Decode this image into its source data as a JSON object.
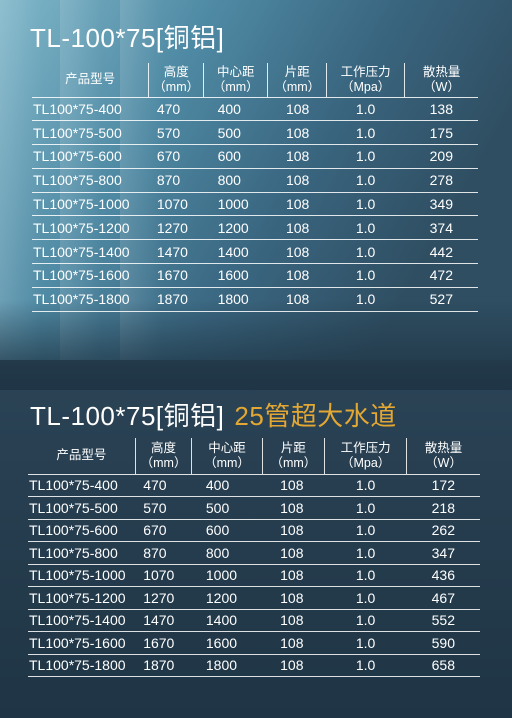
{
  "tables": [
    {
      "title": "TL-100*75[铜铝]",
      "headers": [
        {
          "name": "产品型号",
          "unit": ""
        },
        {
          "name": "高度",
          "unit": "（mm）"
        },
        {
          "name": "中心距",
          "unit": "（mm）"
        },
        {
          "name": "片距",
          "unit": "（mm）"
        },
        {
          "name": "工作压力",
          "unit": "（Mpa）"
        },
        {
          "name": "散热量",
          "unit": "（W）"
        }
      ],
      "rows": [
        [
          "TL100*75-400",
          "470",
          "400",
          "108",
          "1.0",
          "138"
        ],
        [
          "TL100*75-500",
          "570",
          "500",
          "108",
          "1.0",
          "175"
        ],
        [
          "TL100*75-600",
          "670",
          "600",
          "108",
          "1.0",
          "209"
        ],
        [
          "TL100*75-800",
          "870",
          "800",
          "108",
          "1.0",
          "278"
        ],
        [
          "TL100*75-1000",
          "1070",
          "1000",
          "108",
          "1.0",
          "349"
        ],
        [
          "TL100*75-1200",
          "1270",
          "1200",
          "108",
          "1.0",
          "374"
        ],
        [
          "TL100*75-1400",
          "1470",
          "1400",
          "108",
          "1.0",
          "442"
        ],
        [
          "TL100*75-1600",
          "1670",
          "1600",
          "108",
          "1.0",
          "472"
        ],
        [
          "TL100*75-1800",
          "1870",
          "1800",
          "108",
          "1.0",
          "527"
        ]
      ]
    },
    {
      "title": "TL-100*75[铜铝]",
      "subtitle": "25管超大水道",
      "headers": [
        {
          "name": "产品型号",
          "unit": ""
        },
        {
          "name": "高度",
          "unit": "（mm）"
        },
        {
          "name": "中心距",
          "unit": "（mm）"
        },
        {
          "name": "片距",
          "unit": "（mm）"
        },
        {
          "name": "工作压力",
          "unit": "（Mpa）"
        },
        {
          "name": "散热量",
          "unit": "（W）"
        }
      ],
      "rows": [
        [
          "TL100*75-400",
          "470",
          "400",
          "108",
          "1.0",
          "172"
        ],
        [
          "TL100*75-500",
          "570",
          "500",
          "108",
          "1.0",
          "218"
        ],
        [
          "TL100*75-600",
          "670",
          "600",
          "108",
          "1.0",
          "262"
        ],
        [
          "TL100*75-800",
          "870",
          "800",
          "108",
          "1.0",
          "347"
        ],
        [
          "TL100*75-1000",
          "1070",
          "1000",
          "108",
          "1.0",
          "436"
        ],
        [
          "TL100*75-1200",
          "1270",
          "1200",
          "108",
          "1.0",
          "467"
        ],
        [
          "TL100*75-1400",
          "1470",
          "1400",
          "108",
          "1.0",
          "552"
        ],
        [
          "TL100*75-1600",
          "1670",
          "1600",
          "108",
          "1.0",
          "590"
        ],
        [
          "TL100*75-1800",
          "1870",
          "1800",
          "108",
          "1.0",
          "658"
        ]
      ]
    }
  ],
  "colors": {
    "accent": "#e3a733",
    "text": "#ffffff",
    "background": "#2c4558"
  }
}
